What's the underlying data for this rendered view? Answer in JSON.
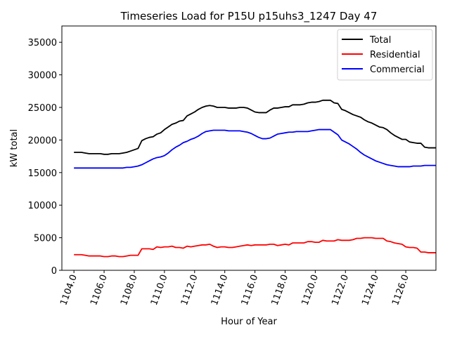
{
  "chart_data": {
    "type": "line",
    "title": "Timeseries Load for P15U p15uhs3_1247  Day 47",
    "xlabel": "Hour of Year",
    "ylabel": "kW total",
    "xlim": [
      1103.2,
      1128.0
    ],
    "ylim": [
      0,
      37500
    ],
    "xticks": [
      1104,
      1106,
      1108,
      1110,
      1112,
      1114,
      1116,
      1118,
      1120,
      1122,
      1124,
      1126
    ],
    "xtick_labels": [
      "1104.0",
      "1106.0",
      "1108.0",
      "1110.0",
      "1112.0",
      "1114.0",
      "1116.0",
      "1118.0",
      "1120.0",
      "1122.0",
      "1124.0",
      "1126.0"
    ],
    "yticks": [
      0,
      5000,
      10000,
      15000,
      20000,
      25000,
      30000,
      35000
    ],
    "ytick_labels": [
      "0",
      "5000",
      "10000",
      "15000",
      "20000",
      "25000",
      "30000",
      "35000"
    ],
    "legend_position": "top-right",
    "x_start": 1104.0,
    "x_step": 0.25,
    "series": [
      {
        "name": "Total",
        "color": "#000000",
        "values": [
          18100,
          18100,
          18100,
          18000,
          17900,
          17900,
          17900,
          17900,
          17800,
          17800,
          17900,
          17900,
          17900,
          18000,
          18100,
          18300,
          18500,
          18700,
          19900,
          20200,
          20400,
          20500,
          20900,
          21100,
          21600,
          22000,
          22400,
          22600,
          22900,
          23000,
          23700,
          24000,
          24300,
          24700,
          25000,
          25200,
          25300,
          25200,
          25000,
          25000,
          25000,
          24900,
          24900,
          24900,
          25000,
          25000,
          24900,
          24600,
          24300,
          24200,
          24200,
          24200,
          24600,
          24900,
          24900,
          25000,
          25100,
          25100,
          25400,
          25400,
          25400,
          25500,
          25700,
          25800,
          25800,
          25900,
          26100,
          26100,
          26100,
          25700,
          25600,
          24700,
          24500,
          24200,
          23900,
          23700,
          23500,
          23100,
          22800,
          22600,
          22300,
          22000,
          21900,
          21600,
          21100,
          20700,
          20400,
          20100,
          20100,
          19700,
          19600,
          19500,
          19500,
          18900,
          18800,
          18800,
          18800
        ]
      },
      {
        "name": "Residential",
        "color": "#ff0000",
        "values": [
          2400,
          2400,
          2400,
          2300,
          2200,
          2200,
          2200,
          2200,
          2100,
          2100,
          2200,
          2200,
          2100,
          2100,
          2200,
          2300,
          2300,
          2300,
          3300,
          3300,
          3300,
          3200,
          3600,
          3500,
          3600,
          3600,
          3700,
          3500,
          3500,
          3400,
          3700,
          3600,
          3700,
          3800,
          3900,
          3900,
          4000,
          3700,
          3500,
          3600,
          3600,
          3500,
          3500,
          3600,
          3700,
          3800,
          3900,
          3800,
          3900,
          3900,
          3900,
          3900,
          4000,
          4000,
          3800,
          3900,
          4000,
          3900,
          4200,
          4200,
          4200,
          4200,
          4400,
          4400,
          4300,
          4300,
          4600,
          4500,
          4500,
          4500,
          4700,
          4600,
          4600,
          4600,
          4700,
          4900,
          4900,
          5000,
          5000,
          5000,
          4900,
          4900,
          4900,
          4500,
          4400,
          4200,
          4100,
          4000,
          3600,
          3500,
          3500,
          3400,
          2800,
          2800,
          2700,
          2700,
          2700
        ]
      },
      {
        "name": "Commercial",
        "color": "#0000ff",
        "values": [
          15700,
          15700,
          15700,
          15700,
          15700,
          15700,
          15700,
          15700,
          15700,
          15700,
          15700,
          15700,
          15700,
          15700,
          15800,
          15800,
          15900,
          16000,
          16200,
          16500,
          16800,
          17100,
          17300,
          17400,
          17600,
          18000,
          18500,
          18900,
          19200,
          19600,
          19800,
          20100,
          20300,
          20600,
          21000,
          21300,
          21400,
          21500,
          21500,
          21500,
          21500,
          21400,
          21400,
          21400,
          21400,
          21300,
          21200,
          21000,
          20700,
          20400,
          20200,
          20200,
          20300,
          20600,
          20900,
          21000,
          21100,
          21200,
          21200,
          21300,
          21300,
          21300,
          21300,
          21400,
          21500,
          21600,
          21600,
          21600,
          21600,
          21200,
          20800,
          20000,
          19700,
          19400,
          19000,
          18600,
          18100,
          17700,
          17400,
          17100,
          16800,
          16600,
          16400,
          16200,
          16100,
          16000,
          15900,
          15900,
          15900,
          15900,
          16000,
          16000,
          16000,
          16100,
          16100,
          16100,
          16100
        ]
      }
    ]
  }
}
